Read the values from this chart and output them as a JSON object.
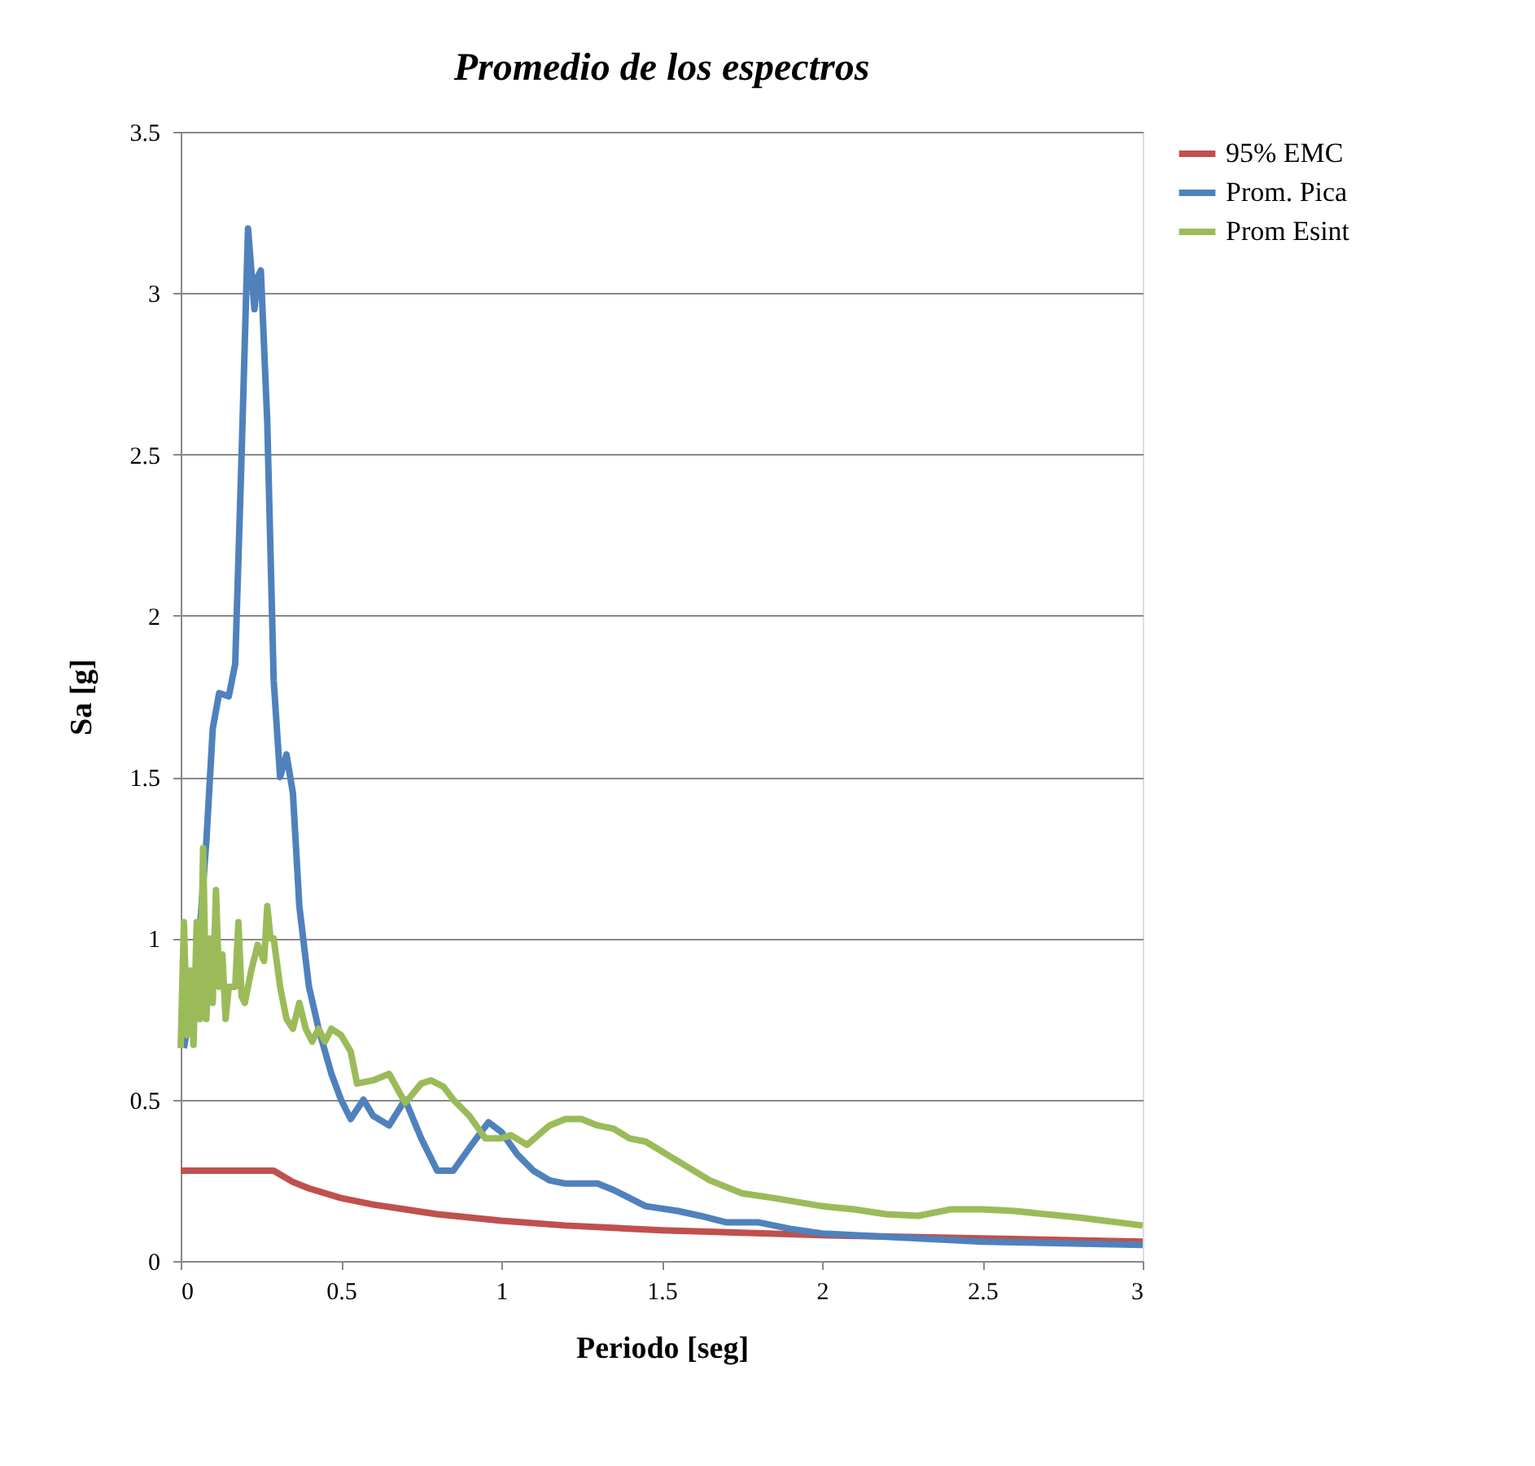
{
  "chart_data": {
    "type": "line",
    "title": "Promedio de los espectros",
    "xlabel": "Periodo [seg]",
    "ylabel": "Sa [g]",
    "xlim": [
      0,
      3
    ],
    "xticks": [
      0,
      0.5,
      1,
      1.5,
      2,
      2.5,
      3
    ],
    "ylim": [
      0,
      3.5
    ],
    "yticks": [
      0,
      0.5,
      1,
      1.5,
      2,
      2.5,
      3,
      3.5
    ],
    "grid": "y",
    "legend": "right",
    "marker": "none",
    "line_style": "solid",
    "series": [
      {
        "name": "95% EMC",
        "color": "#c0504d",
        "x": [
          0,
          0.29,
          0.35,
          0.4,
          0.5,
          0.6,
          0.7,
          0.8,
          1.0,
          1.2,
          1.5,
          2.0,
          2.5,
          3.0
        ],
        "values": [
          0.28,
          0.28,
          0.245,
          0.225,
          0.195,
          0.175,
          0.16,
          0.145,
          0.125,
          0.11,
          0.095,
          0.08,
          0.07,
          0.06
        ]
      },
      {
        "name": "Prom. Pica",
        "color": "#4f81bd",
        "x": [
          0.01,
          0.05,
          0.08,
          0.1,
          0.12,
          0.15,
          0.17,
          0.19,
          0.21,
          0.23,
          0.24,
          0.25,
          0.27,
          0.29,
          0.31,
          0.33,
          0.35,
          0.37,
          0.4,
          0.43,
          0.47,
          0.5,
          0.53,
          0.57,
          0.6,
          0.65,
          0.7,
          0.75,
          0.8,
          0.85,
          0.9,
          0.96,
          1.0,
          1.05,
          1.1,
          1.15,
          1.2,
          1.3,
          1.35,
          1.45,
          1.55,
          1.62,
          1.7,
          1.8,
          1.9,
          2.0,
          2.2,
          2.5,
          3.0
        ],
        "values": [
          0.66,
          0.9,
          1.3,
          1.65,
          1.76,
          1.75,
          1.85,
          2.5,
          3.2,
          2.95,
          3.05,
          3.07,
          2.6,
          1.8,
          1.5,
          1.57,
          1.45,
          1.1,
          0.85,
          0.72,
          0.58,
          0.5,
          0.44,
          0.5,
          0.45,
          0.42,
          0.5,
          0.38,
          0.28,
          0.28,
          0.35,
          0.43,
          0.4,
          0.33,
          0.28,
          0.25,
          0.24,
          0.24,
          0.22,
          0.17,
          0.155,
          0.14,
          0.12,
          0.12,
          0.1,
          0.085,
          0.075,
          0.06,
          0.05
        ]
      },
      {
        "name": "Prom Esint",
        "color": "#9bbb59",
        "x": [
          0.0,
          0.01,
          0.02,
          0.03,
          0.04,
          0.05,
          0.06,
          0.07,
          0.08,
          0.09,
          0.1,
          0.11,
          0.12,
          0.13,
          0.14,
          0.15,
          0.17,
          0.18,
          0.19,
          0.2,
          0.22,
          0.24,
          0.26,
          0.27,
          0.28,
          0.29,
          0.31,
          0.33,
          0.35,
          0.37,
          0.39,
          0.41,
          0.43,
          0.45,
          0.47,
          0.5,
          0.53,
          0.55,
          0.6,
          0.65,
          0.7,
          0.75,
          0.78,
          0.82,
          0.85,
          0.9,
          0.95,
          1.0,
          1.03,
          1.08,
          1.15,
          1.2,
          1.25,
          1.3,
          1.35,
          1.4,
          1.45,
          1.55,
          1.65,
          1.75,
          1.85,
          2.0,
          2.1,
          2.2,
          2.3,
          2.4,
          2.5,
          2.6,
          2.8,
          3.0
        ],
        "values": [
          0.66,
          1.05,
          0.7,
          0.9,
          0.67,
          1.05,
          0.75,
          1.28,
          0.75,
          1.0,
          0.8,
          1.15,
          0.85,
          0.95,
          0.75,
          0.85,
          0.85,
          1.05,
          0.82,
          0.8,
          0.9,
          0.98,
          0.93,
          1.1,
          1.0,
          1.0,
          0.85,
          0.75,
          0.72,
          0.8,
          0.72,
          0.68,
          0.72,
          0.68,
          0.72,
          0.7,
          0.65,
          0.55,
          0.56,
          0.58,
          0.49,
          0.55,
          0.56,
          0.54,
          0.5,
          0.45,
          0.38,
          0.38,
          0.39,
          0.36,
          0.42,
          0.44,
          0.44,
          0.42,
          0.41,
          0.38,
          0.37,
          0.31,
          0.25,
          0.21,
          0.195,
          0.17,
          0.16,
          0.145,
          0.14,
          0.16,
          0.16,
          0.155,
          0.135,
          0.11
        ]
      }
    ]
  }
}
